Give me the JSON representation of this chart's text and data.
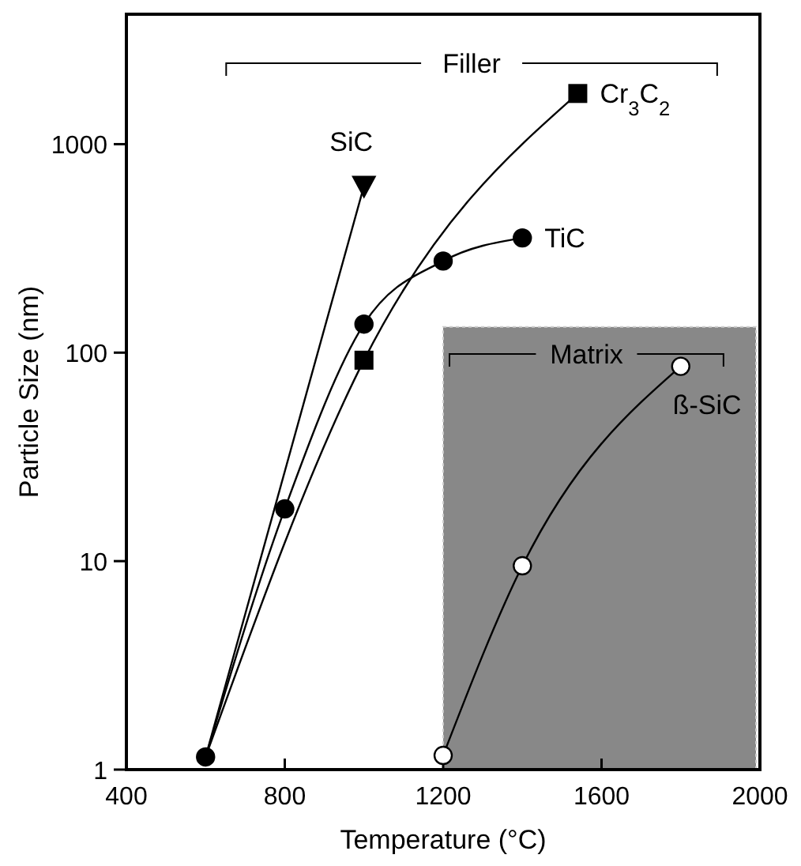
{
  "chart_data": {
    "type": "line",
    "xlabel": "Temperature (°C)",
    "ylabel": "Particle Size (nm)",
    "log": "y",
    "xlim": [
      400,
      2000
    ],
    "xticks": [
      400,
      800,
      1200,
      1600,
      2000
    ],
    "ylim": [
      1,
      4200
    ],
    "yticks": [
      1,
      10,
      100,
      1000
    ],
    "grid": false,
    "line_style": "solid",
    "series": [
      {
        "name": "TiC",
        "color": "#000000",
        "marker": "circle",
        "x": [
          600,
          800,
          1000,
          1200,
          1400
        ],
        "values": [
          1.15,
          17.8,
          137,
          275,
          355
        ]
      },
      {
        "name": "SiC",
        "color": "#000000",
        "marker": "triangle",
        "x": [
          600,
          1000
        ],
        "values": [
          1.15,
          630
        ]
      },
      {
        "name": "Cr$_{3}$C$_{2}$",
        "color": "#000000",
        "marker": "square",
        "x": [
          600,
          1000,
          1540
        ],
        "values": [
          1.15,
          92,
          1750
        ]
      },
      {
        "name": "ß-SiC",
        "color": "#ffffff",
        "marker": "circle",
        "x": [
          1200,
          1400,
          1800
        ],
        "values": [
          1.17,
          9.5,
          86
        ]
      }
    ],
    "bands": [
      {
        "axis": "x",
        "from": 1200,
        "to": 1990,
        "color": "#888888"
      }
    ],
    "annotations": [
      "Filler",
      "Matrix"
    ]
  }
}
